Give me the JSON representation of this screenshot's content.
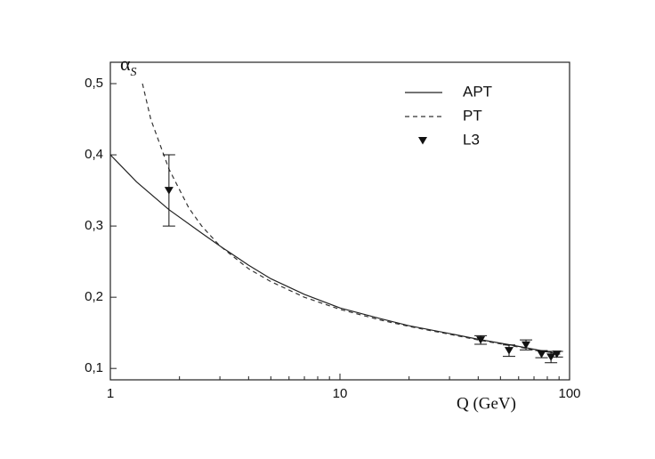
{
  "chart_data": {
    "type": "line",
    "x_label": "Q (GeV)",
    "y_label": {
      "symbol": "α",
      "subscript": "S"
    },
    "xscale": "log",
    "xlim": [
      1,
      100
    ],
    "xticks": [
      1,
      10,
      100
    ],
    "ylim": [
      0.084,
      0.53
    ],
    "yticks": [
      {
        "value": 0.1,
        "label": "0,1"
      },
      {
        "value": 0.2,
        "label": "0,2"
      },
      {
        "value": 0.3,
        "label": "0,3"
      },
      {
        "value": 0.4,
        "label": "0,4"
      },
      {
        "value": 0.5,
        "label": "0,5"
      }
    ],
    "legend": "upper right",
    "series": [
      {
        "name": "APT",
        "style": "solid",
        "color": "#222222",
        "x": [
          1,
          1.3,
          1.8,
          2.5,
          3,
          4,
          5,
          7,
          10,
          15,
          20,
          30,
          40,
          60,
          91
        ],
        "values": [
          0.4,
          0.362,
          0.323,
          0.29,
          0.272,
          0.245,
          0.226,
          0.204,
          0.185,
          0.17,
          0.16,
          0.149,
          0.141,
          0.131,
          0.12
        ]
      },
      {
        "name": "PT",
        "style": "dashed",
        "color": "#333333",
        "x": [
          1.38,
          1.5,
          1.8,
          2.2,
          2.5,
          3,
          4,
          5,
          7,
          10,
          15,
          20,
          30,
          40,
          60,
          91
        ],
        "values": [
          0.5,
          0.45,
          0.38,
          0.325,
          0.3,
          0.272,
          0.24,
          0.222,
          0.2,
          0.183,
          0.168,
          0.159,
          0.148,
          0.14,
          0.13,
          0.12
        ]
      },
      {
        "name": "L3",
        "style": "markers",
        "color": "#111111",
        "x": [
          1.8,
          41,
          54.5,
          64.6,
          75.5,
          83,
          88
        ],
        "values": [
          0.35,
          0.14,
          0.125,
          0.133,
          0.12,
          0.116,
          0.12
        ],
        "errors": [
          0.05,
          0.006,
          0.008,
          0.007,
          0.005,
          0.008,
          0.004
        ]
      }
    ]
  }
}
